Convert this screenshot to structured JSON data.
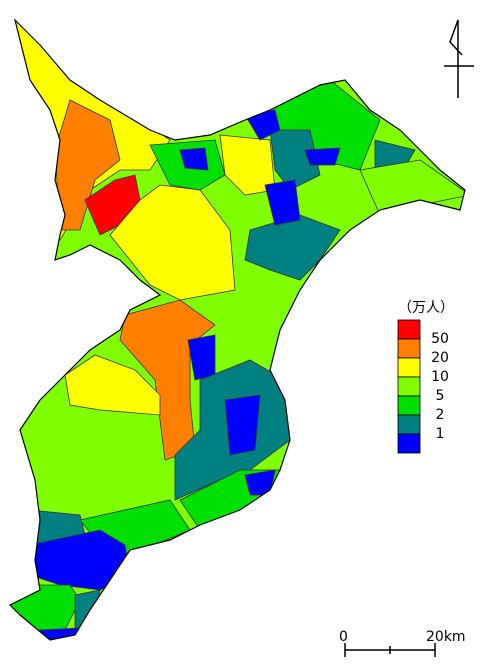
{
  "legend": {
    "title": "（万人）",
    "items": [
      {
        "label": "50",
        "color": "#ff0000"
      },
      {
        "label": "20",
        "color": "#ff8000"
      },
      {
        "label": "10",
        "color": "#ffff00"
      },
      {
        "label": "5",
        "color": "#80ff00"
      },
      {
        "label": "2",
        "color": "#00e000"
      },
      {
        "label": "1",
        "color": "#008080"
      },
      {
        "label": "",
        "color": "#0000ff"
      }
    ]
  },
  "scale_bar": {
    "start": "0",
    "end": "20km"
  }
}
